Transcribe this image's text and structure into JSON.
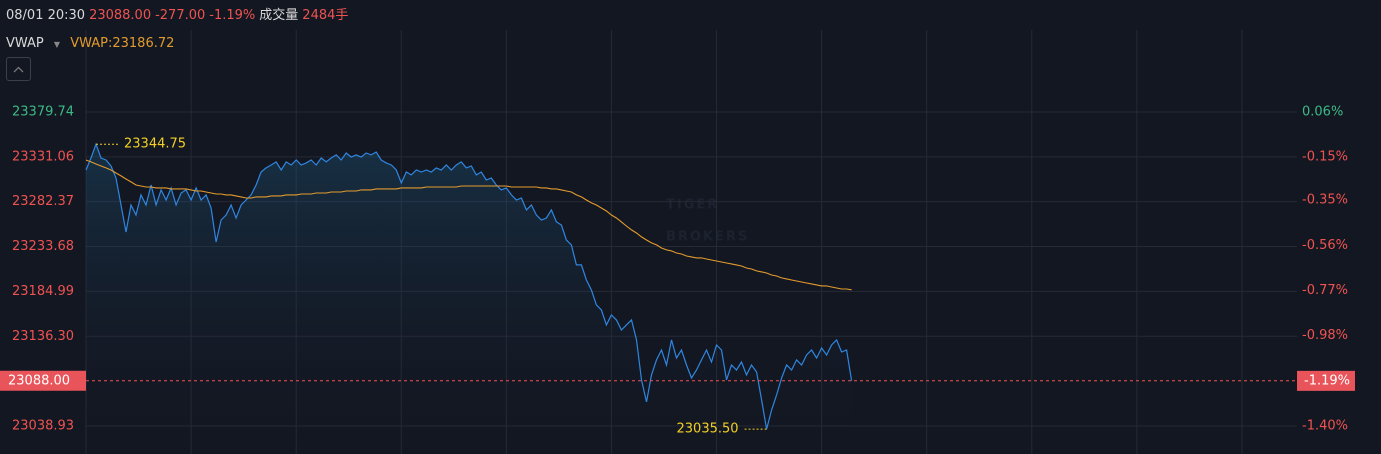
{
  "header": {
    "time": "08/01 20:30",
    "price": "23088.00",
    "change": "-277.00",
    "change_pct": "-1.19%",
    "volume_label": "成交量",
    "volume": "2484手"
  },
  "chart_data": {
    "type": "line",
    "indicator": "VWAP",
    "legend_text": "VWAP:23186.72",
    "watermark": [
      "TIGER",
      "BROKERS"
    ],
    "x": [
      0,
      1,
      2,
      3,
      4,
      5,
      6,
      7,
      8,
      9,
      10,
      11,
      12,
      13,
      14,
      15,
      16,
      17,
      18,
      19,
      20,
      21,
      22,
      23,
      24,
      25,
      26,
      27,
      28,
      29,
      30,
      31,
      32,
      33,
      34,
      35,
      36,
      37,
      38,
      39,
      40,
      41,
      42,
      43,
      44,
      45,
      46,
      47,
      48,
      49,
      50,
      51,
      52,
      53,
      54,
      55,
      56,
      57,
      58,
      59,
      60,
      61,
      62,
      63,
      64,
      65,
      66,
      67,
      68,
      69,
      70,
      71,
      72,
      73,
      74,
      75,
      76,
      77,
      78,
      79,
      80,
      81,
      82,
      83,
      84,
      85,
      86,
      87,
      88,
      89,
      90,
      91,
      92,
      93,
      94,
      95,
      96,
      97,
      98,
      99,
      100,
      101,
      102,
      103,
      104,
      105,
      106,
      107,
      108,
      109,
      110,
      111,
      112,
      113,
      114,
      115,
      116,
      117,
      118,
      119,
      120,
      121,
      122,
      123,
      124,
      125,
      126,
      127,
      128,
      129,
      130,
      131,
      132,
      133,
      134,
      135,
      136,
      137,
      138,
      139,
      140,
      141,
      142,
      143,
      144,
      145,
      146,
      147,
      148,
      149,
      150,
      151,
      152,
      153
    ],
    "series": [
      {
        "color": "#2f86e0",
        "area": true,
        "values": [
          23316.8,
          23329.8,
          23344.75,
          23329.8,
          23327.6,
          23321.1,
          23308.1,
          23278.8,
          23249.5,
          23278.8,
          23267.9,
          23289.7,
          23278.8,
          23300.5,
          23278.8,
          23295.1,
          23284.2,
          23297.3,
          23278.8,
          23291.8,
          23295.1,
          23284.2,
          23297.3,
          23284.2,
          23289.7,
          23275.5,
          23238.6,
          23262.5,
          23267.9,
          23278.8,
          23264.7,
          23278.8,
          23284.2,
          23289.7,
          23300.5,
          23314.6,
          23319.0,
          23322.2,
          23325.5,
          23316.8,
          23325.5,
          23322.2,
          23327.6,
          23322.2,
          23324.4,
          23327.6,
          23322.2,
          23329.8,
          23325.5,
          23329.8,
          23333.1,
          23327.6,
          23335.2,
          23330.9,
          23333.1,
          23330.9,
          23335.2,
          23333.1,
          23336.3,
          23327.6,
          23324.4,
          23322.2,
          23316.8,
          23302.7,
          23314.6,
          23311.4,
          23316.8,
          23314.6,
          23316.8,
          23314.6,
          23319.0,
          23316.8,
          23322.2,
          23316.8,
          23322.2,
          23325.5,
          23319.0,
          23321.1,
          23311.4,
          23314.6,
          23305.9,
          23308.1,
          23300.5,
          23295.1,
          23297.3,
          23289.7,
          23284.2,
          23286.4,
          23273.4,
          23278.8,
          23267.9,
          23262.5,
          23264.7,
          23273.4,
          23260.4,
          23257.1,
          23240.8,
          23235.4,
          23213.7,
          23213.7,
          23197.4,
          23186.5,
          23170.3,
          23164.8,
          23148.6,
          23159.4,
          23154.0,
          23143.1,
          23148.6,
          23154.0,
          23132.3,
          23088.9,
          23065.0,
          23094.3,
          23110.6,
          23121.4,
          23105.1,
          23132.3,
          23112.7,
          23121.4,
          23105.1,
          23091.0,
          23099.7,
          23110.6,
          23121.4,
          23108.4,
          23126.8,
          23121.4,
          23088.9,
          23105.1,
          23099.7,
          23108.4,
          23094.3,
          23105.1,
          23097.5,
          23067.1,
          23035.5,
          23056.3,
          23072.6,
          23091.0,
          23105.1,
          23099.7,
          23110.6,
          23105.1,
          23116.0,
          23121.4,
          23112.7,
          23123.6,
          23116.0,
          23126.8,
          23132.3,
          23119.2,
          23121.4,
          23088.0
        ]
      },
      {
        "name": "VWAP",
        "color": "#e39b2e",
        "values": [
          23327.6,
          23325.5,
          23323.3,
          23321.1,
          23319.0,
          23316.8,
          23313.5,
          23310.3,
          23307.0,
          23303.8,
          23300.5,
          23299.4,
          23298.3,
          23298.3,
          23297.3,
          23297.3,
          23297.3,
          23296.2,
          23296.2,
          23296.2,
          23296.2,
          23295.1,
          23294.0,
          23294.0,
          23292.9,
          23291.8,
          23290.7,
          23290.7,
          23289.7,
          23289.7,
          23288.6,
          23287.5,
          23286.4,
          23286.4,
          23287.5,
          23287.5,
          23287.5,
          23288.6,
          23288.6,
          23288.6,
          23289.7,
          23289.7,
          23289.7,
          23290.7,
          23290.7,
          23290.7,
          23291.8,
          23291.8,
          23291.8,
          23292.9,
          23292.9,
          23292.9,
          23294.0,
          23294.0,
          23294.0,
          23295.1,
          23295.1,
          23295.1,
          23296.2,
          23296.2,
          23296.2,
          23296.2,
          23296.2,
          23297.3,
          23297.3,
          23297.3,
          23297.3,
          23297.3,
          23298.3,
          23298.3,
          23298.3,
          23298.3,
          23298.3,
          23298.3,
          23298.3,
          23299.4,
          23299.4,
          23299.4,
          23299.4,
          23299.4,
          23299.4,
          23299.4,
          23299.4,
          23299.4,
          23299.4,
          23298.3,
          23298.3,
          23298.3,
          23298.3,
          23298.3,
          23298.3,
          23297.3,
          23297.3,
          23296.2,
          23296.2,
          23295.1,
          23294.0,
          23292.9,
          23289.7,
          23287.5,
          23284.2,
          23281.0,
          23278.8,
          23275.5,
          23272.3,
          23267.9,
          23264.7,
          23260.4,
          23256.0,
          23251.7,
          23248.4,
          23244.1,
          23240.8,
          23237.6,
          23235.4,
          23232.1,
          23230.0,
          23228.9,
          23226.7,
          23225.6,
          23223.4,
          23222.4,
          23221.3,
          23221.3,
          23220.2,
          23219.1,
          23218.0,
          23216.9,
          23215.8,
          23214.8,
          23213.7,
          23212.6,
          23210.4,
          23209.3,
          23207.2,
          23206.1,
          23205.0,
          23202.8,
          23201.7,
          23199.6,
          23198.5,
          23197.4,
          23196.3,
          23195.2,
          23194.1,
          23193.1,
          23192.0,
          23190.9,
          23190.9,
          23189.8,
          23188.7,
          23187.6,
          23187.6,
          23186.72
        ]
      }
    ],
    "xlim": [
      0,
      242
    ],
    "xticks": [
      0,
      21,
      42,
      63,
      84,
      105,
      126,
      147,
      168,
      189,
      210,
      231
    ],
    "ylim": [
      23008.5,
      23468.7
    ],
    "yticks": [
      23379.74,
      23331.06,
      23282.37,
      23233.68,
      23184.99,
      {
        "value": 23136.3,
        "label": "23136.30"
      },
      23038.93
    ],
    "y2lim": [
      -1.53,
      0.441
    ],
    "y2ticks": [
      {
        "value": 0.06,
        "label": "0.06%"
      },
      {
        "value": -0.15,
        "label": "-0.15%"
      },
      {
        "value": -0.35,
        "label": "-0.35%"
      },
      {
        "value": -0.56,
        "label": "-0.56%"
      },
      {
        "value": -0.77,
        "label": "-0.77%"
      },
      {
        "value": -0.98,
        "label": "-0.98%"
      },
      {
        "value": -1.4,
        "label": "-1.40%"
      }
    ],
    "last_price": {
      "value": 23088,
      "label": "23088.00"
    },
    "last_change": {
      "value": -1.19,
      "label": "-1.19%"
    },
    "annotations": [
      {
        "text": "23344.75",
        "x": 2,
        "y": 23344.75,
        "side": "right"
      },
      {
        "text": "23035.50",
        "x": 136,
        "y": 23035.5,
        "side": "left"
      }
    ],
    "up_color": "#3cba84",
    "down_color": "#ef5350",
    "grid": true
  }
}
